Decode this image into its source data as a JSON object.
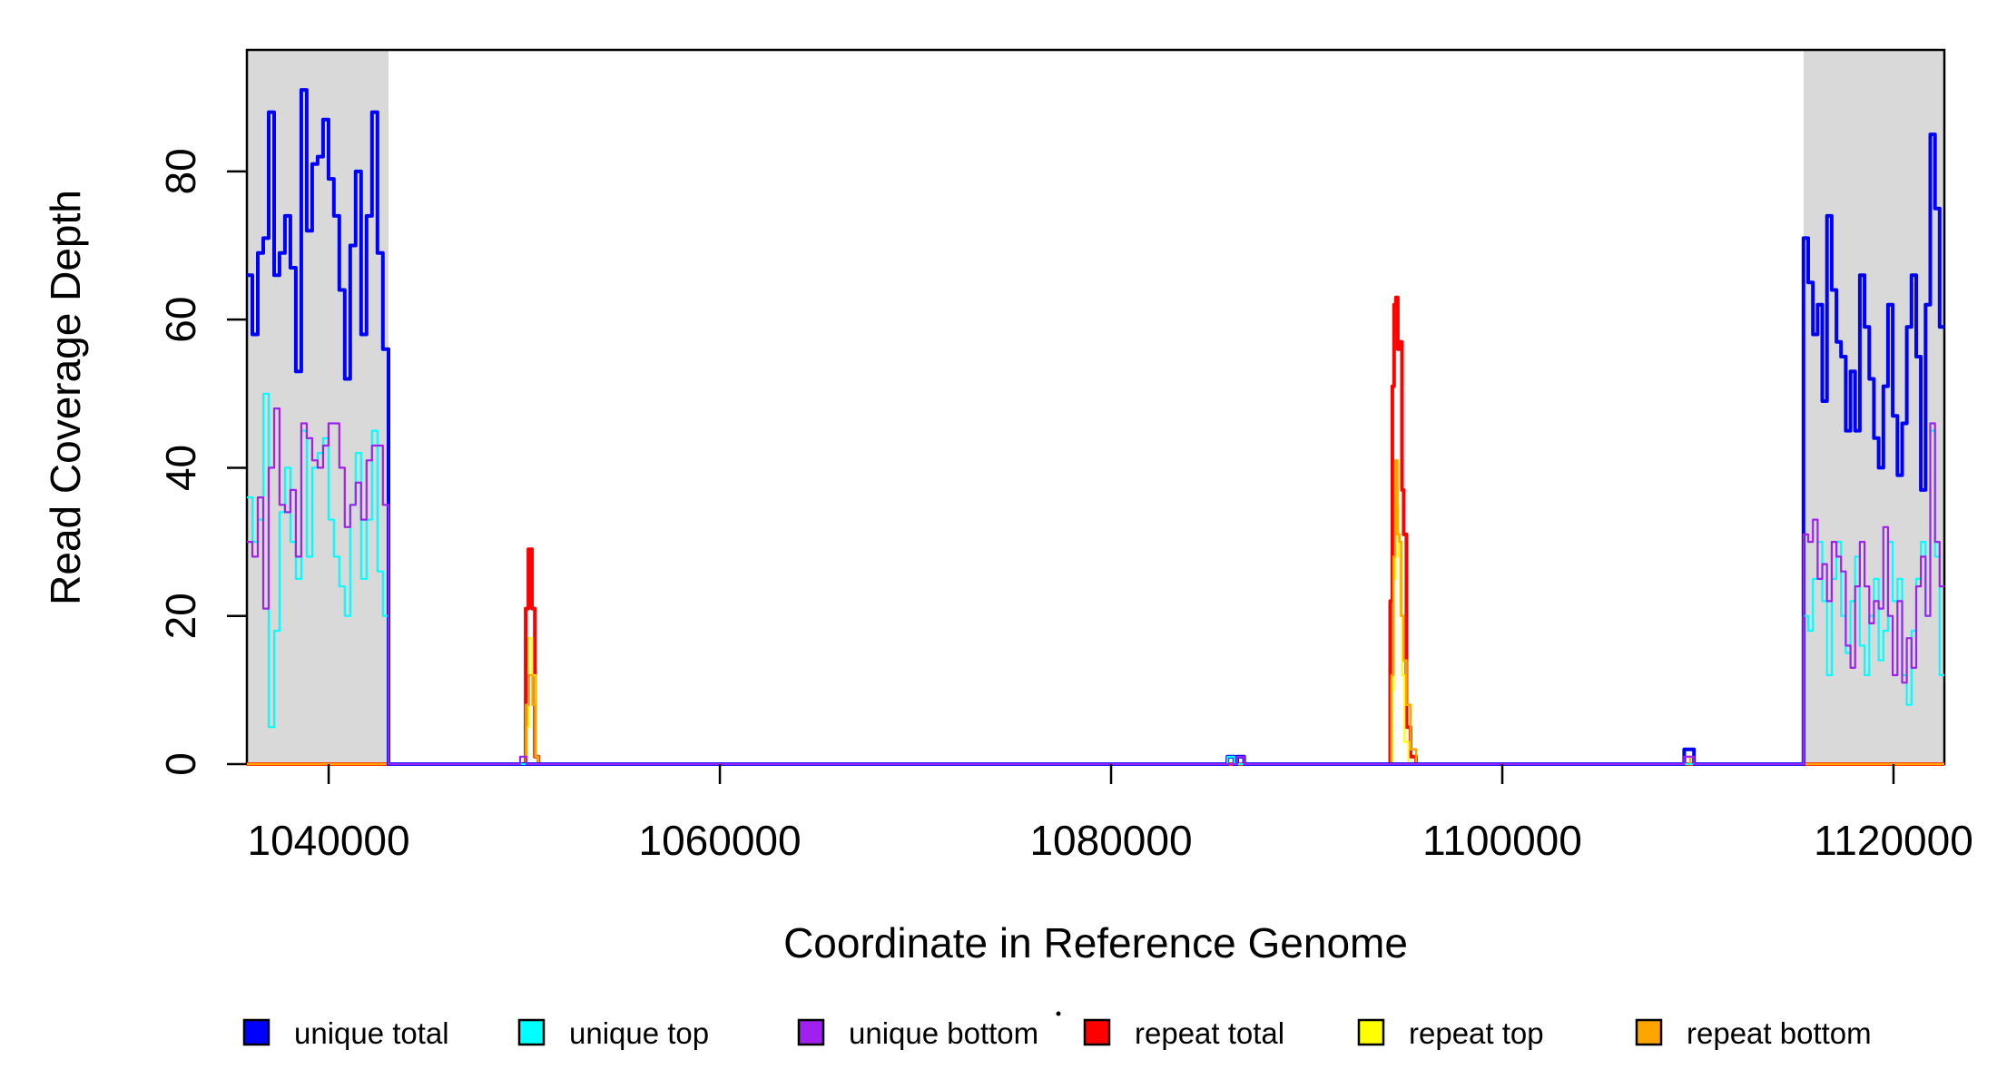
{
  "chart_data": {
    "type": "line",
    "subtype": "step-coverage",
    "title": "",
    "xlabel": "Coordinate in Reference Genome",
    "ylabel": "Read Coverage Depth",
    "xlim": [
      1035820,
      1122600
    ],
    "ylim": [
      0,
      96.4
    ],
    "x_ticks": [
      1040000,
      1060000,
      1080000,
      1100000,
      1120000
    ],
    "x_tick_labels": [
      "1040000",
      "1060000",
      "1080000",
      "1100000",
      "1120000"
    ],
    "y_ticks": [
      0,
      20,
      40,
      60,
      80
    ],
    "y_tick_labels": [
      "0",
      "20",
      "40",
      "60",
      "80"
    ],
    "grid": false,
    "step_mode": "after",
    "background_color": "#ffffff",
    "shaded_regions": [
      {
        "x1": 1035820,
        "x2": 1043060,
        "color": "#D9D9D9",
        "name": "left-gray-region"
      },
      {
        "x1": 1115400,
        "x2": 1122600,
        "color": "#D9D9D9",
        "name": "right-gray-region"
      }
    ],
    "draw_order": [
      "repeat total",
      "repeat top",
      "repeat bottom",
      "unique total",
      "unique top",
      "unique bottom"
    ],
    "series": [
      {
        "name": "unique total",
        "color": "#0000FF",
        "lwd": 4,
        "segments": [
          {
            "type": "steps",
            "x0": 1035820,
            "dx": 278,
            "v": [
              66,
              58,
              69,
              71,
              88,
              66,
              69,
              74,
              67,
              53,
              91,
              72,
              81,
              82,
              87,
              79,
              74,
              64,
              52,
              70,
              80,
              58,
              74,
              88,
              69,
              56
            ]
          },
          {
            "type": "pairs",
            "p": [
              [
                1043060,
                0
              ],
              [
                1085950,
                1
              ],
              [
                1086300,
                0
              ],
              [
                1086450,
                1
              ],
              [
                1086800,
                0
              ],
              [
                1109300,
                2
              ],
              [
                1109800,
                0
              ]
            ]
          },
          {
            "type": "steps",
            "x0": 1115400,
            "dx": 240,
            "v": [
              71,
              65,
              58,
              62,
              49,
              74,
              64,
              57,
              55,
              45,
              53,
              45,
              66,
              59,
              52,
              44,
              40,
              51,
              62,
              47,
              39,
              46,
              59,
              66,
              55,
              37,
              62,
              85,
              75,
              59
            ]
          }
        ]
      },
      {
        "name": "unique top",
        "color": "#00FFFF",
        "lwd": 2.2,
        "segments": [
          {
            "type": "steps",
            "x0": 1035820,
            "dx": 278,
            "v": [
              36,
              30,
              33,
              50,
              5,
              18,
              34,
              40,
              30,
              25,
              45,
              28,
              40,
              42,
              44,
              33,
              28,
              24,
              20,
              35,
              42,
              25,
              33,
              45,
              26,
              20
            ]
          },
          {
            "type": "pairs",
            "p": [
              [
                1043060,
                0
              ],
              [
                1085950,
                1
              ],
              [
                1086300,
                0
              ]
            ]
          },
          {
            "type": "steps",
            "x0": 1115400,
            "dx": 240,
            "v": [
              20,
              18,
              25,
              30,
              22,
              12,
              25,
              30,
              20,
              15,
              22,
              28,
              16,
              12,
              20,
              25,
              14,
              18,
              30,
              22,
              25,
              12,
              8,
              18,
              25,
              30,
              20,
              45,
              28,
              12
            ]
          }
        ]
      },
      {
        "name": "unique bottom",
        "color": "#A020F0",
        "lwd": 2.2,
        "segments": [
          {
            "type": "steps",
            "x0": 1035820,
            "dx": 278,
            "v": [
              30,
              28,
              36,
              21,
              40,
              48,
              35,
              34,
              37,
              28,
              46,
              44,
              41,
              40,
              43,
              46,
              46,
              40,
              32,
              35,
              38,
              33,
              41,
              43,
              43,
              35
            ]
          },
          {
            "type": "pairs",
            "p": [
              [
                1043060,
                0
              ],
              [
                1049790,
                1
              ],
              [
                1050115,
                0
              ],
              [
                1086450,
                1
              ],
              [
                1086800,
                0
              ],
              [
                1109300,
                1
              ],
              [
                1109800,
                0
              ]
            ]
          },
          {
            "type": "steps",
            "x0": 1115400,
            "dx": 240,
            "v": [
              31,
              30,
              33,
              25,
              27,
              22,
              30,
              28,
              26,
              16,
              13,
              24,
              30,
              24,
              19,
              22,
              21,
              32,
              20,
              12,
              22,
              11,
              17,
              13,
              24,
              28,
              20,
              46,
              30,
              24
            ]
          }
        ]
      },
      {
        "name": "repeat total",
        "color": "#FF0000",
        "lwd": 4,
        "segments": [
          {
            "type": "pairs",
            "p": [
              [
                1035820,
                0
              ],
              [
                1050070,
                21
              ],
              [
                1050210,
                29
              ],
              [
                1050395,
                21
              ],
              [
                1050540,
                1
              ],
              [
                1050720,
                0
              ],
              [
                1094270,
                22
              ],
              [
                1094380,
                51
              ],
              [
                1094470,
                62
              ],
              [
                1094560,
                63
              ],
              [
                1094660,
                56
              ],
              [
                1094780,
                57
              ],
              [
                1094870,
                37
              ],
              [
                1094960,
                31
              ],
              [
                1095100,
                5
              ],
              [
                1095310,
                1
              ],
              [
                1095590,
                0
              ]
            ]
          }
        ]
      },
      {
        "name": "repeat top",
        "color": "#FFFF00",
        "lwd": 2.2,
        "segments": [
          {
            "type": "pairs",
            "p": [
              [
                1035820,
                0
              ],
              [
                1050100,
                5
              ],
              [
                1050230,
                17
              ],
              [
                1050400,
                12
              ],
              [
                1050560,
                1
              ],
              [
                1050700,
                0
              ],
              [
                1094360,
                10
              ],
              [
                1094450,
                25
              ],
              [
                1094540,
                40
              ],
              [
                1094620,
                35
              ],
              [
                1094700,
                28
              ],
              [
                1094780,
                20
              ],
              [
                1094870,
                12
              ],
              [
                1095000,
                3
              ],
              [
                1095200,
                0
              ]
            ]
          }
        ]
      },
      {
        "name": "repeat bottom",
        "color": "#FFA500",
        "lwd": 2.6,
        "segments": [
          {
            "type": "pairs",
            "p": [
              [
                1035820,
                0
              ],
              [
                1050090,
                8
              ],
              [
                1050240,
                12
              ],
              [
                1050420,
                8
              ],
              [
                1050580,
                1
              ],
              [
                1050720,
                0
              ],
              [
                1094330,
                12
              ],
              [
                1094440,
                28
              ],
              [
                1094530,
                41
              ],
              [
                1094640,
                31
              ],
              [
                1094740,
                30
              ],
              [
                1094830,
                20
              ],
              [
                1094950,
                14
              ],
              [
                1095100,
                8
              ],
              [
                1095310,
                2
              ],
              [
                1095590,
                0
              ],
              [
                1109350,
                1
              ],
              [
                1109600,
                0
              ]
            ]
          }
        ]
      }
    ],
    "legend": {
      "position": "bottom",
      "title_dot": ".",
      "entries": [
        {
          "label": "unique total",
          "color": "#0000FF"
        },
        {
          "label": "unique top",
          "color": "#00FFFF"
        },
        {
          "label": "unique bottom",
          "color": "#A020F0"
        },
        {
          "label": "repeat total",
          "color": "#FF0000"
        },
        {
          "label": "repeat top",
          "color": "#FFFF00"
        },
        {
          "label": "repeat bottom",
          "color": "#FFA500"
        }
      ]
    }
  }
}
